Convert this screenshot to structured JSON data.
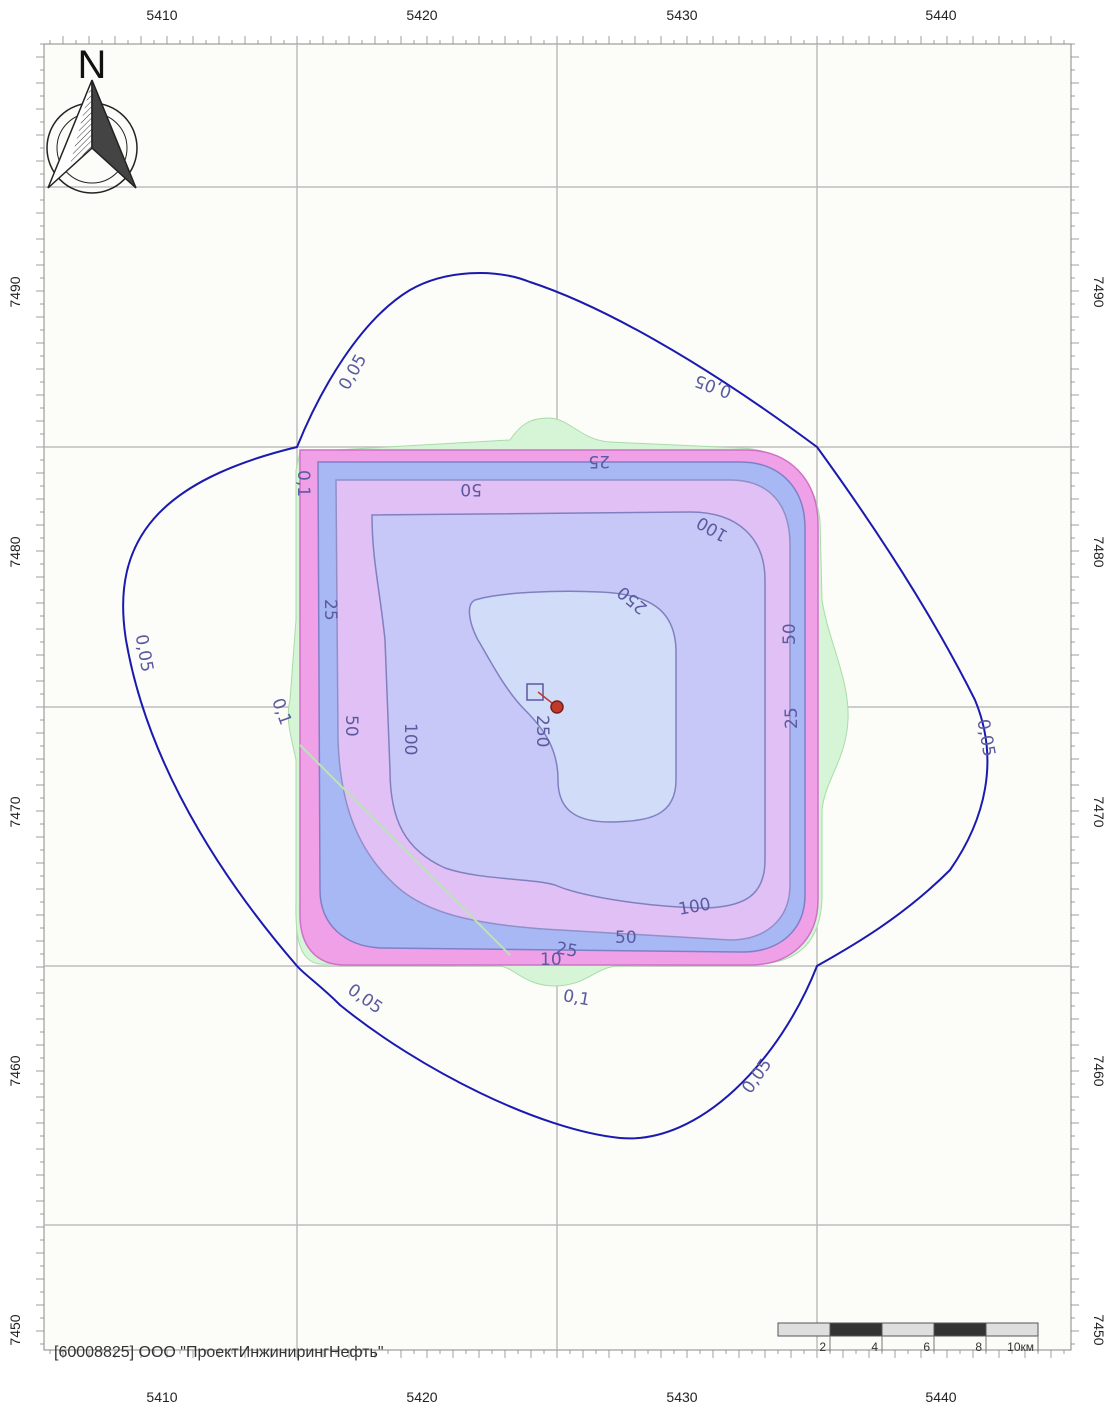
{
  "map": {
    "organization": "[60008825] ООО \"ПроектИнжинирингНефть\"",
    "north_label": "N",
    "x_ticks": [
      "5410",
      "5420",
      "5430",
      "5440"
    ],
    "y_ticks": [
      "7490",
      "7480",
      "7470",
      "7460",
      "7450"
    ],
    "scale_bar": {
      "labels": [
        "2",
        "4",
        "6",
        "8",
        "10км"
      ]
    },
    "contour_labels": {
      "outer": "0,05",
      "c01": "0,1",
      "c25": "25",
      "c50": "50",
      "c100": "100",
      "c250": "250",
      "c10": "10"
    },
    "colors": {
      "background": "#fcfcf8",
      "grid": "#bdbdbd",
      "outer_contour": "#1a1ab0",
      "zone_01": "#d6f5d6",
      "zone_10": "#f0a0e6",
      "zone_25": "#a8b8f5",
      "zone_50": "#e0c0f5",
      "zone_100": "#c8c8f8",
      "zone_250": "#d0dcf8",
      "source_marker": "#c0392b"
    }
  }
}
